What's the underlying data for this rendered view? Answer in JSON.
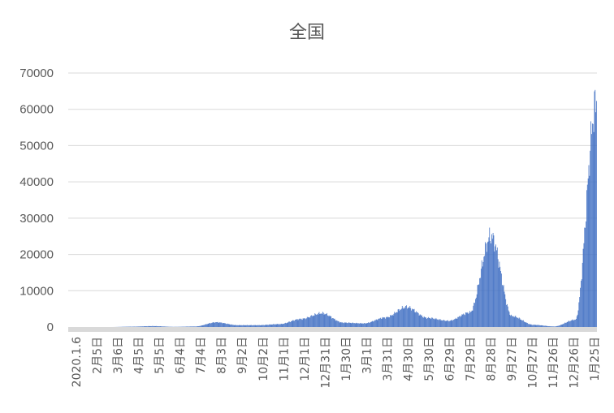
{
  "chart_data": {
    "type": "bar",
    "title": "全国",
    "xlabel": "",
    "ylabel": "",
    "ylim": [
      0,
      70000
    ],
    "yticks": [
      "0",
      "10000",
      "20000",
      "30000",
      "40000",
      "50000",
      "60000",
      "70000"
    ],
    "ytick_values": [
      0,
      10000,
      20000,
      30000,
      40000,
      50000,
      60000,
      70000
    ],
    "grid": true,
    "legend": "none",
    "bar_color": "#4472c4",
    "categories": [
      "2020.1.6",
      "2月5日",
      "3月6日",
      "4月5日",
      "5月5日",
      "6月4日",
      "7月4日",
      "8月3日",
      "9月2日",
      "10月2日",
      "11月1日",
      "12月1日",
      "12月31日",
      "1月30日",
      "3月1日",
      "3月31日",
      "4月30日",
      "5月30日",
      "6月29日",
      "7月29日",
      "8月28日",
      "9月27日",
      "10月27日",
      "11月26日",
      "12月26日",
      "1月25日"
    ],
    "series": [
      {
        "values": [
          0,
          0,
          0,
          100,
          250,
          50,
          150,
          1300,
          500,
          500,
          800,
          2200,
          3800,
          1200,
          1000,
          2600,
          5500,
          2500,
          1700,
          4000,
          25000,
          3000,
          600,
          150,
          2000,
          62000
        ]
      }
    ]
  }
}
